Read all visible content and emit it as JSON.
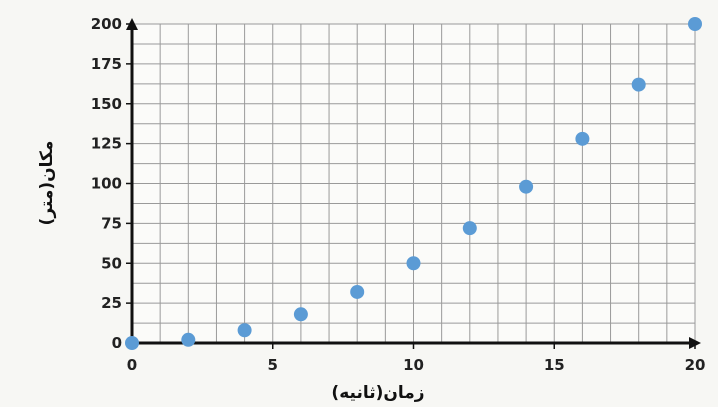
{
  "chart_data": {
    "type": "scatter",
    "xlabel": "زمان(ثانیه)",
    "ylabel": "مکان(متر)",
    "xlim": [
      0,
      20
    ],
    "ylim": [
      0,
      200
    ],
    "x_ticks": [
      0,
      5,
      10,
      15,
      20
    ],
    "y_ticks": [
      0,
      25,
      50,
      75,
      100,
      125,
      150,
      175,
      200
    ],
    "grid": true,
    "legend": "none",
    "marker_color": "#5b9bd5",
    "series": [
      {
        "x": [
          0,
          2,
          4,
          6,
          8,
          10,
          12,
          14,
          16,
          18,
          20
        ],
        "y": [
          0,
          2,
          8,
          18,
          32,
          50,
          72,
          98,
          128,
          162,
          200
        ]
      }
    ]
  }
}
